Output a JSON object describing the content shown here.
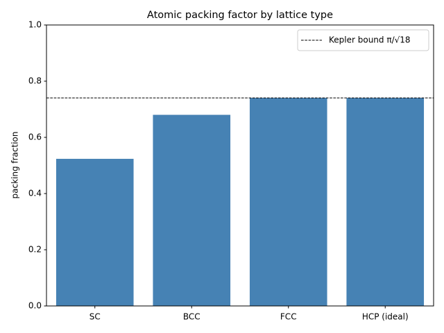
{
  "chart_data": {
    "type": "bar",
    "title": "Atomic packing factor by lattice type",
    "ylabel": "packing fraction",
    "categories": [
      "SC",
      "BCC",
      "FCC",
      "HCP (ideal)"
    ],
    "values": [
      0.5236,
      0.6802,
      0.7405,
      0.7405
    ],
    "color": "#4682b4",
    "ylim": [
      0,
      1
    ],
    "yticks": [
      {
        "value": 0,
        "label": "0.0"
      },
      0.2,
      0.4,
      0.6,
      0.8,
      {
        "value": 1,
        "label": "1.0"
      }
    ],
    "grid": false,
    "reference_line": {
      "value": 0.7405,
      "label": "Kepler bound π/√18",
      "color": "#000000",
      "style": "dashed"
    },
    "legend": "upper right"
  }
}
